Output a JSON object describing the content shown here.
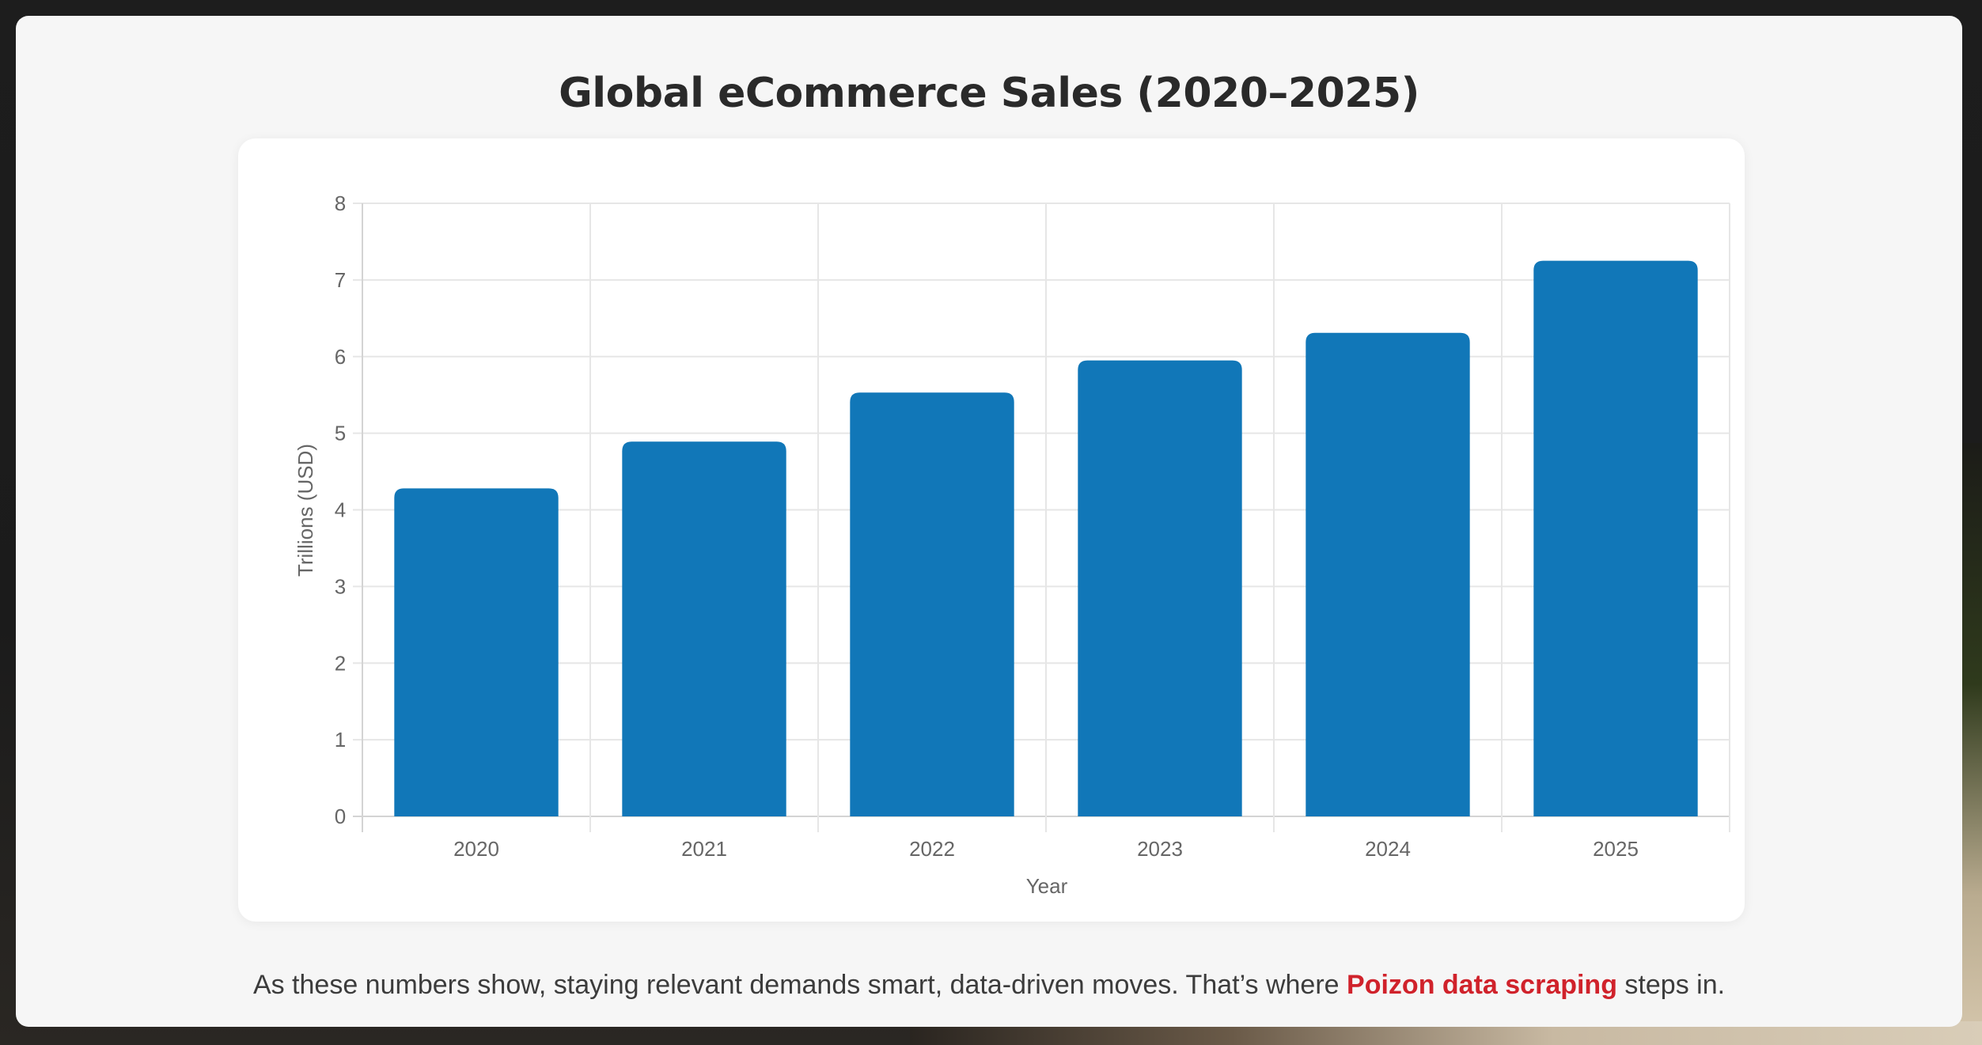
{
  "page": {
    "title": "Global eCommerce Sales (2020–2025)",
    "caption": {
      "before": "As these numbers show, staying relevant demands smart, data-driven moves. That’s where ",
      "highlight": "Poizon data scraping",
      "after": " steps in."
    }
  },
  "colors": {
    "bar": "#1177b8",
    "highlight": "#d0222b",
    "grid": "#e6e6e6",
    "axis_text": "#666666",
    "panel_bg": "#f6f6f6",
    "card_bg": "#ffffff"
  },
  "chart_data": {
    "type": "bar",
    "title": "Global eCommerce Sales (2020–2025)",
    "xlabel": "Year",
    "ylabel": "Trillions (USD)",
    "categories": [
      "2020",
      "2021",
      "2022",
      "2023",
      "2024",
      "2025"
    ],
    "values": [
      4.28,
      4.89,
      5.53,
      5.95,
      6.31,
      7.25
    ],
    "ylim": [
      0,
      8
    ],
    "yticks": [
      0,
      1,
      2,
      3,
      4,
      5,
      6,
      7,
      8
    ],
    "grid": true,
    "legend": null
  }
}
